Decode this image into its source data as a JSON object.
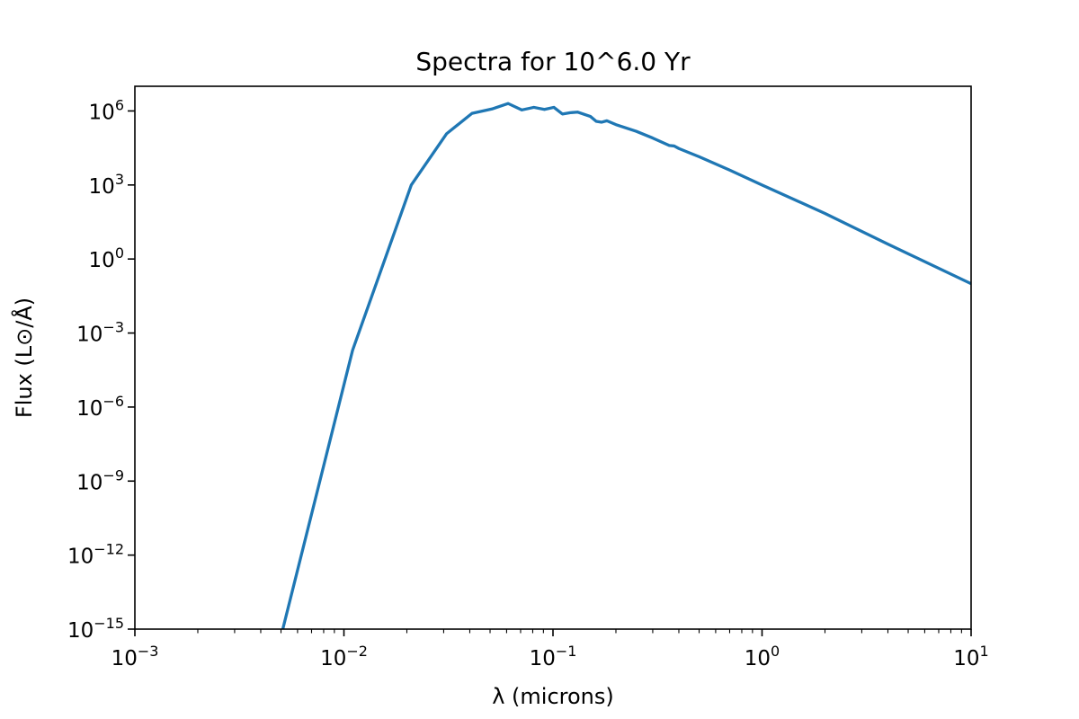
{
  "chart_data": {
    "type": "line",
    "title": "Spectra for 10^6.0 Yr",
    "xlabel": "λ (microns)",
    "ylabel": "Flux (L⊙/Å)",
    "x_scale": "log",
    "y_scale": "log",
    "xlim": [
      0.001,
      10
    ],
    "ylim": [
      1e-15,
      10000000.0
    ],
    "x_ticks": [
      {
        "value": 0.001,
        "base": "10",
        "exp": "−3"
      },
      {
        "value": 0.01,
        "base": "10",
        "exp": "−2"
      },
      {
        "value": 0.1,
        "base": "10",
        "exp": "−1"
      },
      {
        "value": 1,
        "base": "10",
        "exp": "0"
      },
      {
        "value": 10,
        "base": "10",
        "exp": "1"
      }
    ],
    "y_ticks": [
      {
        "value": 1e-15,
        "base": "10",
        "exp": "−15"
      },
      {
        "value": 1e-12,
        "base": "10",
        "exp": "−12"
      },
      {
        "value": 1e-09,
        "base": "10",
        "exp": "−9"
      },
      {
        "value": 1e-06,
        "base": "10",
        "exp": "−6"
      },
      {
        "value": 0.001,
        "base": "10",
        "exp": "−3"
      },
      {
        "value": 1,
        "base": "10",
        "exp": "0"
      },
      {
        "value": 1000,
        "base": "10",
        "exp": "3"
      },
      {
        "value": 1000000,
        "base": "10",
        "exp": "6"
      }
    ],
    "grid": false,
    "series": [
      {
        "color": "#1f77b4",
        "points": [
          [
            0.0051,
            1e-15
          ],
          [
            0.011,
            0.0002
          ],
          [
            0.021,
            1000
          ],
          [
            0.031,
            120000
          ],
          [
            0.041,
            800000
          ],
          [
            0.051,
            1200000
          ],
          [
            0.061,
            2000000
          ],
          [
            0.071,
            1100000
          ],
          [
            0.081,
            1400000
          ],
          [
            0.091,
            1150000
          ],
          [
            0.101,
            1400000
          ],
          [
            0.111,
            750000
          ],
          [
            0.121,
            850000
          ],
          [
            0.131,
            900000
          ],
          [
            0.151,
            600000
          ],
          [
            0.161,
            380000
          ],
          [
            0.171,
            350000
          ],
          [
            0.181,
            400000
          ],
          [
            0.2,
            280000
          ],
          [
            0.25,
            150000
          ],
          [
            0.3,
            80000
          ],
          [
            0.36,
            40000
          ],
          [
            0.38,
            38000
          ],
          [
            0.4,
            30000
          ],
          [
            0.5,
            14000
          ],
          [
            0.7,
            4000
          ],
          [
            1.0,
            1000
          ],
          [
            2.0,
            70
          ],
          [
            4.0,
            4
          ],
          [
            10.0,
            0.1
          ]
        ]
      }
    ]
  }
}
